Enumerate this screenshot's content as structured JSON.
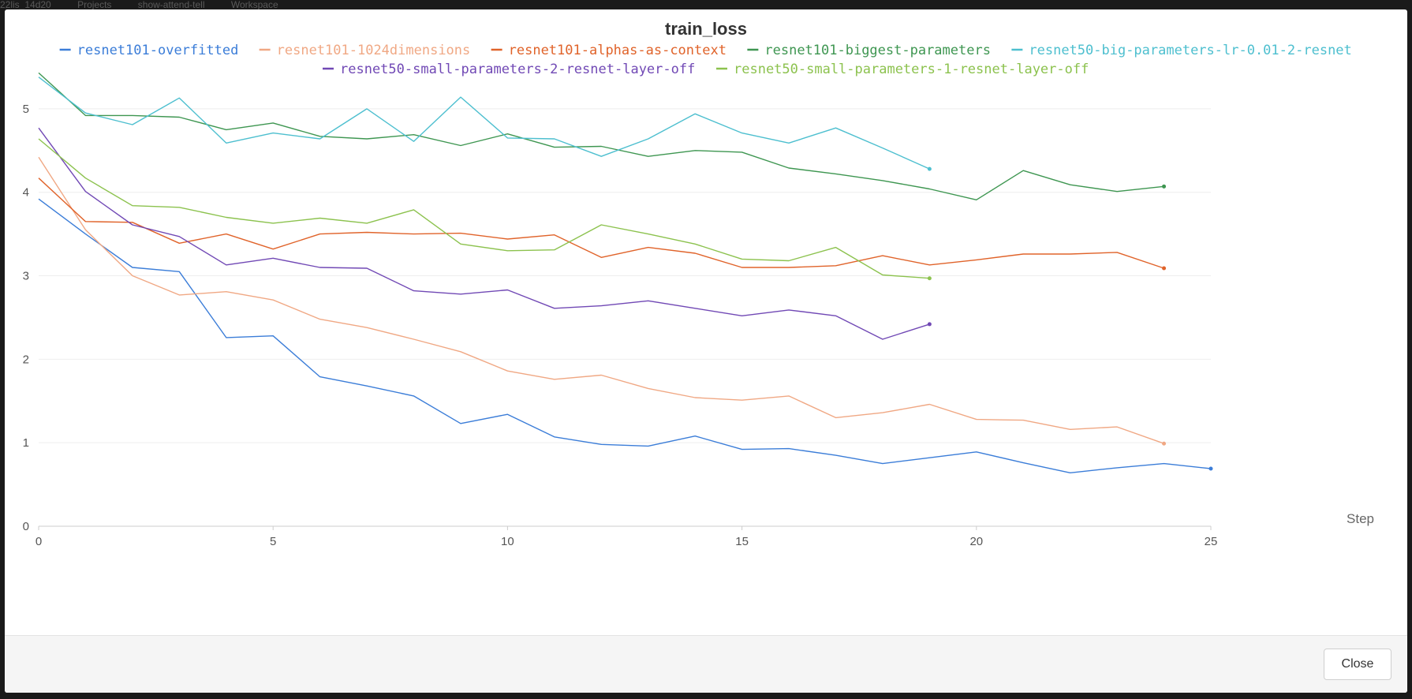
{
  "backdrop": {
    "items": [
      "22lis_14d20",
      "Projects",
      "show-attend-tell",
      "Workspace"
    ]
  },
  "modal": {
    "close_label": "Close"
  },
  "chart_data": {
    "type": "line",
    "title": "train_loss",
    "xlabel": "Step",
    "ylabel": "",
    "xlim": [
      0,
      25
    ],
    "ylim": [
      0,
      5.5
    ],
    "xticks": [
      0,
      5,
      10,
      15,
      20,
      25
    ],
    "yticks": [
      0,
      1,
      2,
      3,
      4,
      5
    ],
    "grid": "horizontal",
    "legend_position": "top-center",
    "series": [
      {
        "name": "resnet101-overfitted",
        "color": "#3b7dd8",
        "x": [
          0,
          1,
          2,
          3,
          4,
          5,
          6,
          7,
          8,
          9,
          10,
          11,
          12,
          13,
          14,
          15,
          16,
          17,
          18,
          19,
          20,
          21,
          22,
          23,
          24,
          25
        ],
        "y": [
          3.92,
          3.5,
          3.1,
          3.05,
          2.26,
          2.28,
          1.79,
          1.68,
          1.56,
          1.23,
          1.34,
          1.07,
          0.98,
          0.96,
          1.08,
          0.92,
          0.93,
          0.85,
          0.75,
          0.82,
          0.89,
          0.76,
          0.64,
          0.7,
          0.75,
          0.69
        ]
      },
      {
        "name": "resnet101-1024dimensions",
        "color": "#f0a884",
        "x": [
          0,
          1,
          2,
          3,
          4,
          5,
          6,
          7,
          8,
          9,
          10,
          11,
          12,
          13,
          14,
          15,
          16,
          17,
          18,
          19,
          20,
          21,
          22,
          23,
          24
        ],
        "y": [
          4.42,
          3.55,
          3.0,
          2.77,
          2.81,
          2.71,
          2.48,
          2.38,
          2.24,
          2.09,
          1.86,
          1.76,
          1.81,
          1.65,
          1.54,
          1.51,
          1.56,
          1.3,
          1.36,
          1.46,
          1.28,
          1.27,
          1.16,
          1.19,
          0.99
        ]
      },
      {
        "name": "resnet101-alphas-as-context",
        "color": "#e0632a",
        "x": [
          0,
          1,
          2,
          3,
          4,
          5,
          6,
          7,
          8,
          9,
          10,
          11,
          12,
          13,
          14,
          15,
          16,
          17,
          18,
          19,
          20,
          21,
          22,
          23,
          24
        ],
        "y": [
          4.17,
          3.65,
          3.64,
          3.39,
          3.5,
          3.32,
          3.5,
          3.52,
          3.5,
          3.51,
          3.44,
          3.49,
          3.22,
          3.34,
          3.27,
          3.1,
          3.1,
          3.12,
          3.24,
          3.13,
          3.19,
          3.26,
          3.26,
          3.28,
          3.09
        ]
      },
      {
        "name": "resnet101-biggest-parameters",
        "color": "#3e9651",
        "x": [
          0,
          1,
          2,
          3,
          4,
          5,
          6,
          7,
          8,
          9,
          10,
          11,
          12,
          13,
          14,
          15,
          16,
          17,
          18,
          19,
          20,
          21,
          22,
          23,
          24
        ],
        "y": [
          5.43,
          4.92,
          4.92,
          4.9,
          4.75,
          4.83,
          4.67,
          4.64,
          4.69,
          4.56,
          4.7,
          4.54,
          4.55,
          4.43,
          4.5,
          4.48,
          4.29,
          4.22,
          4.14,
          4.04,
          3.91,
          4.26,
          4.09,
          4.01,
          4.07
        ]
      },
      {
        "name": "resnet50-big-parameters-lr-0.01-2-resnet",
        "color": "#4dbfcf",
        "x": [
          0,
          1,
          2,
          3,
          4,
          5,
          6,
          7,
          8,
          9,
          10,
          11,
          12,
          13,
          14,
          15,
          16,
          17,
          18,
          19
        ],
        "y": [
          5.38,
          4.95,
          4.81,
          5.13,
          4.59,
          4.71,
          4.64,
          5.0,
          4.61,
          5.14,
          4.65,
          4.64,
          4.43,
          4.64,
          4.94,
          4.71,
          4.59,
          4.77,
          4.53,
          4.28
        ]
      },
      {
        "name": "resnet50-small-parameters-2-resnet-layer-off",
        "color": "#7149b5",
        "x": [
          0,
          1,
          2,
          3,
          4,
          5,
          6,
          7,
          8,
          9,
          10,
          11,
          12,
          13,
          14,
          15,
          16,
          17,
          18,
          19
        ],
        "y": [
          4.77,
          4.01,
          3.61,
          3.47,
          3.13,
          3.21,
          3.1,
          3.09,
          2.82,
          2.78,
          2.83,
          2.61,
          2.64,
          2.7,
          2.61,
          2.52,
          2.59,
          2.52,
          2.24,
          2.42
        ]
      },
      {
        "name": "resnet50-small-parameters-1-resnet-layer-off",
        "color": "#8cc24e",
        "x": [
          0,
          1,
          2,
          3,
          4,
          5,
          6,
          7,
          8,
          9,
          10,
          11,
          12,
          13,
          14,
          15,
          16,
          17,
          18,
          19
        ],
        "y": [
          4.64,
          4.17,
          3.84,
          3.82,
          3.7,
          3.63,
          3.69,
          3.63,
          3.79,
          3.38,
          3.3,
          3.31,
          3.61,
          3.5,
          3.38,
          3.2,
          3.18,
          3.34,
          3.01,
          2.97
        ]
      }
    ]
  }
}
